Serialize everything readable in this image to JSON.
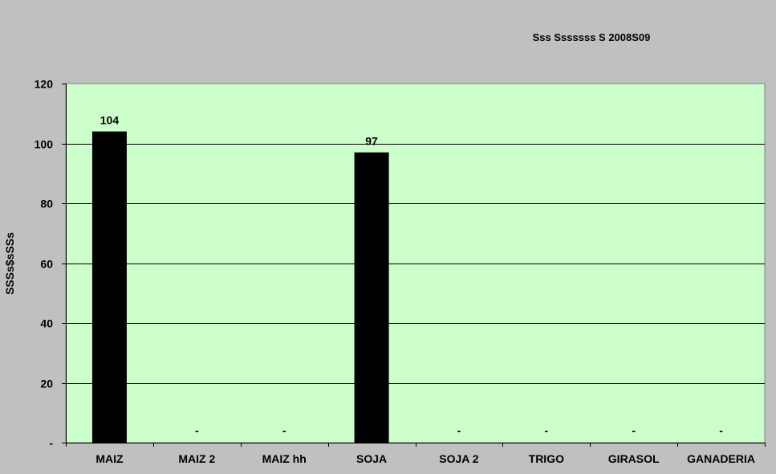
{
  "chart_data": {
    "type": "bar",
    "title": "Sss Sssssss S 2008S09",
    "xlabel": "",
    "ylabel": "SSSs$sSSs",
    "categories": [
      "MAIZ",
      "MAIZ 2",
      "MAIZ hh",
      "SOJA",
      "SOJA 2",
      "TRIGO",
      "GIRASOL",
      "GANADERIA"
    ],
    "values": [
      104,
      0,
      0,
      97,
      0,
      0,
      0,
      0
    ],
    "data_labels": [
      "104",
      "-",
      "-",
      "97",
      "-",
      "-",
      "-",
      "-"
    ],
    "yticks": [
      "-",
      "20",
      "40",
      "60",
      "80",
      "100",
      "120"
    ],
    "ytick_values": [
      0,
      20,
      40,
      60,
      80,
      100,
      120
    ],
    "ylim": [
      0,
      120
    ],
    "grid": true,
    "legend": "none",
    "colors": {
      "background": "#c0c0c0",
      "plot_area": "#ccffcc",
      "bar": "#000000",
      "gridline": "#000000",
      "text": "#000000"
    }
  }
}
